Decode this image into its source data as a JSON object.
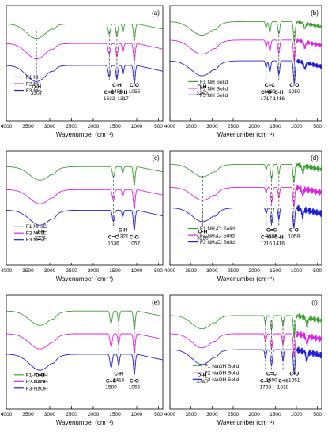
{
  "colors": {
    "green": "#3aa02f",
    "magenta": "#e020e0",
    "blue": "#2020d0",
    "axis": "#000000",
    "dash": "#333333"
  },
  "shared": {
    "xlabel": "Wavenumber (cm⁻¹)",
    "xticks": [
      "4000",
      "3500",
      "3000",
      "2500",
      "2000",
      "1500",
      "1000",
      "500"
    ]
  },
  "chart_data": [
    {
      "type": "line",
      "panel_label": "(a)",
      "xlim": [
        4000,
        400
      ],
      "series": [
        {
          "name": "F1 NH",
          "color": "#3aa02f"
        },
        {
          "name": "F2 NH",
          "color": "#e020e0"
        },
        {
          "name": "F3 NH",
          "color": "#2020d0"
        }
      ],
      "annotations": [
        {
          "group": "O-H",
          "value": "3307",
          "x": 3307
        },
        {
          "group": "C=C",
          "value": "1632",
          "x": 1632
        },
        {
          "group": "C-H",
          "value": "1456",
          "x": 1456
        },
        {
          "group": "C-H",
          "value": "1317",
          "x": 1317
        },
        {
          "group": "C-O",
          "value": "1055",
          "x": 1055
        }
      ]
    },
    {
      "type": "line",
      "panel_label": "(b)",
      "xlim": [
        4000,
        400
      ],
      "series": [
        {
          "name": "F1 NH Solid",
          "color": "#3aa02f"
        },
        {
          "name": "F2 NH Solid",
          "color": "#e020e0"
        },
        {
          "name": "F3 NH Solid",
          "color": "#2020d0"
        }
      ],
      "annotations": [
        {
          "group": "O-H",
          "value": "3240",
          "x": 3240
        },
        {
          "group": "C=O",
          "value": "1717",
          "x": 1717
        },
        {
          "group": "C=C",
          "value": "1630",
          "x": 1630
        },
        {
          "group": "C-H",
          "value": "1416",
          "x": 1416
        },
        {
          "group": "C-O",
          "value": "1050",
          "x": 1050
        }
      ]
    },
    {
      "type": "line",
      "panel_label": "(c)",
      "xlim": [
        4000,
        400
      ],
      "series": [
        {
          "name": "F1 NH₄Cl",
          "color": "#3aa02f"
        },
        {
          "name": "F2 NH₄Cl",
          "color": "#e020e0"
        },
        {
          "name": "F3 NH₄Cl",
          "color": "#2020d0"
        }
      ],
      "annotations": [
        {
          "group": "O-H",
          "value": "3226",
          "x": 3226
        },
        {
          "group": "C=C",
          "value": "1536",
          "x": 1536
        },
        {
          "group": "C-H",
          "value": "1321",
          "x": 1321
        },
        {
          "group": "C-O",
          "value": "1057",
          "x": 1057
        }
      ]
    },
    {
      "type": "line",
      "panel_label": "(d)",
      "xlim": [
        4000,
        400
      ],
      "series": [
        {
          "name": "F1 NH₄Cl Solid",
          "color": "#3aa02f"
        },
        {
          "name": "F2 NH₄Cl Solid",
          "color": "#e020e0"
        },
        {
          "name": "F3 NH₄Cl Solid",
          "color": "#2020d0"
        }
      ],
      "annotations": [
        {
          "group": "O-H",
          "value": "3225",
          "x": 3225
        },
        {
          "group": "C=O",
          "value": "1716",
          "x": 1716
        },
        {
          "group": "C=C",
          "value": "1588",
          "x": 1588
        },
        {
          "group": "C-H",
          "value": "1416",
          "x": 1416
        },
        {
          "group": "C-O",
          "value": "1059",
          "x": 1059
        }
      ]
    },
    {
      "type": "line",
      "panel_label": "(e)",
      "xlim": [
        4000,
        400
      ],
      "series": [
        {
          "name": "F1-NaOH",
          "color": "#3aa02f"
        },
        {
          "name": "F2-NaOH",
          "color": "#e020e0"
        },
        {
          "name": "F3-NaOH",
          "color": "#2020d0"
        }
      ],
      "annotations": [
        {
          "group": "O-H",
          "value": "3227",
          "x": 3227
        },
        {
          "group": "C=C",
          "value": "1589",
          "x": 1589
        },
        {
          "group": "C-H",
          "value": "1416",
          "x": 1416
        },
        {
          "group": "C-O",
          "value": "1055",
          "x": 1055
        }
      ]
    },
    {
      "type": "line",
      "panel_label": "(f)",
      "xlim": [
        4000,
        400
      ],
      "series": [
        {
          "name": "F1 NaOH Solid",
          "color": "#3aa02f"
        },
        {
          "name": "F2 NaOH Solid",
          "color": "#e020e0"
        },
        {
          "name": "F3 NaOH Solid",
          "color": "#2020d0"
        }
      ],
      "annotations": [
        {
          "group": "O-H",
          "value": "3240",
          "x": 3240
        },
        {
          "group": "C=O",
          "value": "1733",
          "x": 1733
        },
        {
          "group": "C=C",
          "value": "1590",
          "x": 1590
        },
        {
          "group": "C-H",
          "value": "1318",
          "x": 1318
        },
        {
          "group": "C-O",
          "value": "1051",
          "x": 1051
        }
      ]
    }
  ]
}
